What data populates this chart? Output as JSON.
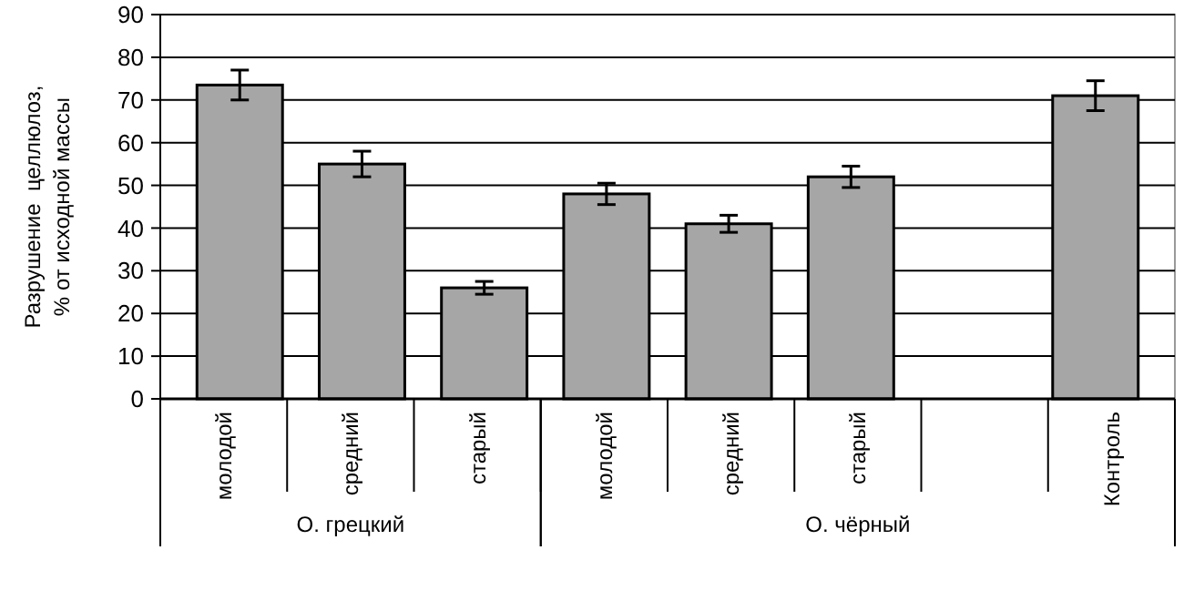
{
  "chart_data": {
    "type": "bar",
    "ylabel": "Разрушение  целлюлоз,\n% от исходной массы",
    "categories": [
      "молодой",
      "средний",
      "старый",
      "молодой",
      "средний",
      "старый",
      null,
      "Контроль"
    ],
    "values": [
      73.5,
      55,
      26,
      48,
      41,
      52,
      null,
      71
    ],
    "errors": [
      3.5,
      3,
      1.5,
      2.5,
      2,
      2.5,
      null,
      3.5
    ],
    "color": "#a6a6a6",
    "ylim": [
      0,
      90
    ],
    "yticks": [
      0,
      10,
      20,
      30,
      40,
      50,
      60,
      70,
      80,
      90
    ],
    "grid": "y",
    "annotations": [
      "О. грецкий",
      "О. чёрный"
    ]
  }
}
